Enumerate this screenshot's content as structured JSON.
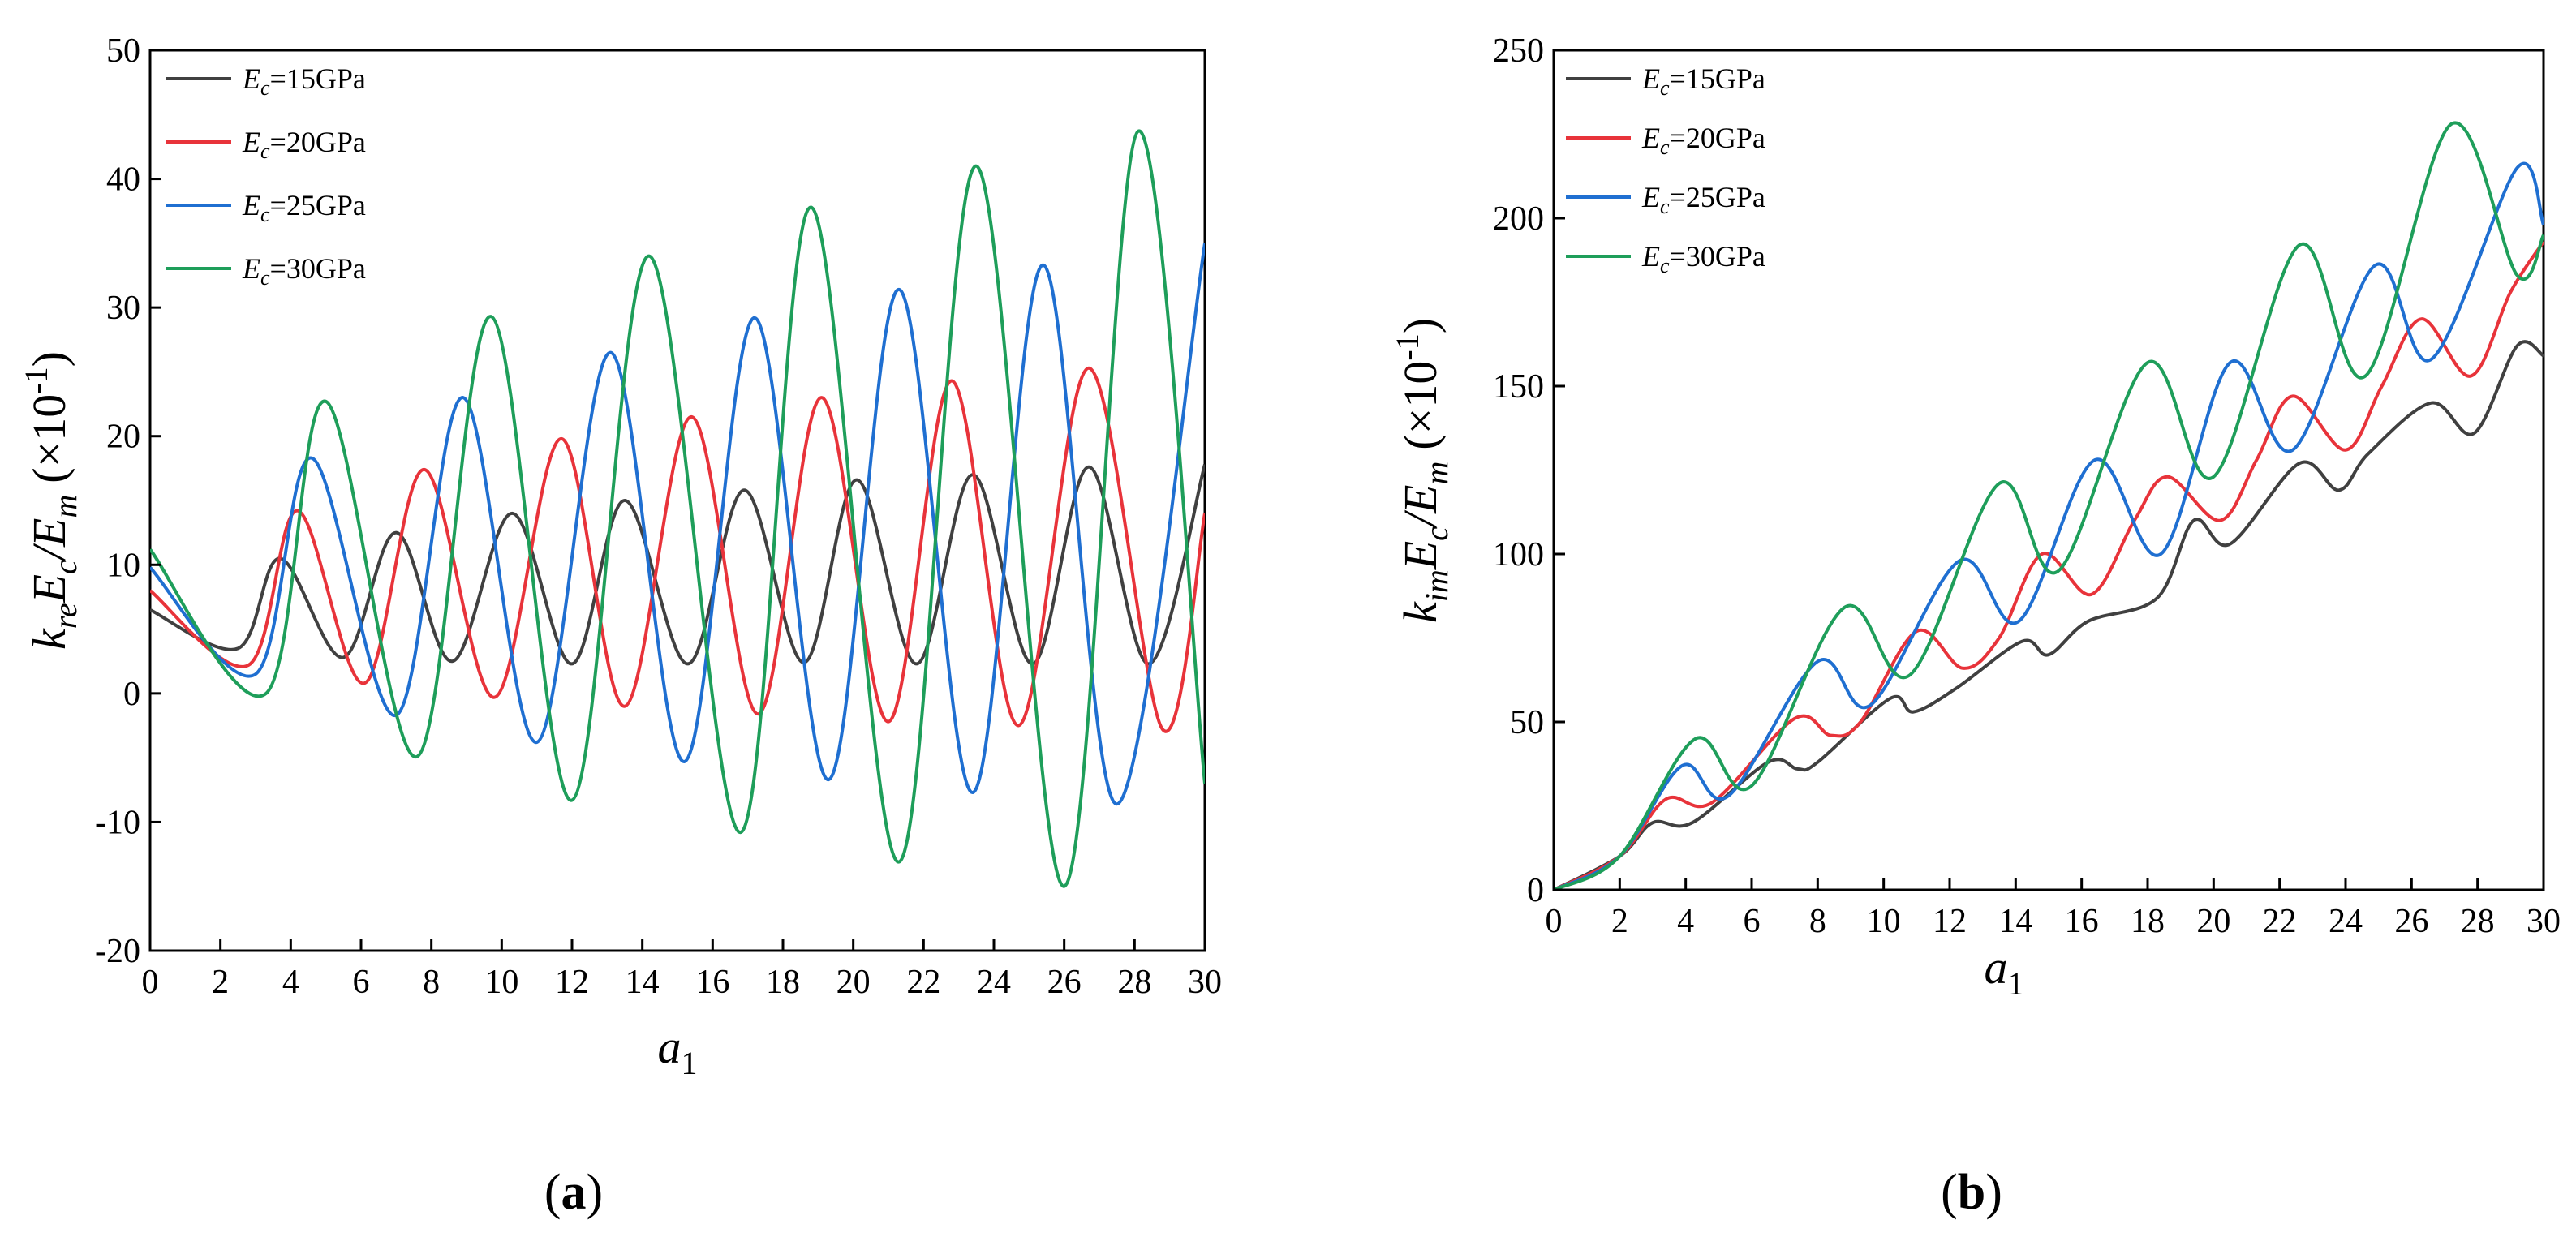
{
  "chart_data": [
    {
      "type": "line",
      "panel": "a",
      "panel_label": "a",
      "xlabel": "a",
      "xlabel_sub": "1",
      "ylabel": "k_re E_c / E_m (×10^-1)",
      "ylabel_parts": {
        "k": "k",
        "k_sub": "re",
        "Ec": "E",
        "Ec_sub": "c",
        "slash": "/",
        "Em": "E",
        "Em_sub": "m",
        "unit_pre": "(×10",
        "unit_exp": "-1",
        "unit_post": ")"
      },
      "xlim": [
        0,
        30
      ],
      "ylim": [
        -20,
        50
      ],
      "xticks": [
        0,
        2,
        4,
        6,
        8,
        10,
        12,
        14,
        16,
        18,
        20,
        22,
        24,
        26,
        28,
        30
      ],
      "yticks": [
        -20,
        -10,
        0,
        10,
        20,
        30,
        40,
        50
      ],
      "legend_position": "top-left",
      "series": [
        {
          "name": "E_c=15GPa",
          "label_prefix": "E",
          "label_sub": "c",
          "label_suffix": "=15GPa",
          "color": "#404040",
          "x": [
            0,
            2.5,
            3.7,
            5.5,
            7.0,
            8.6,
            10.3,
            12.0,
            13.5,
            15.3,
            16.9,
            18.6,
            20.1,
            21.8,
            23.4,
            25.1,
            26.7,
            28.4,
            30
          ],
          "values": [
            6.5,
            3.5,
            10.5,
            2.8,
            12.5,
            2.5,
            14.0,
            2.3,
            15.0,
            2.3,
            15.8,
            2.4,
            16.6,
            2.3,
            17.0,
            2.3,
            17.6,
            2.3,
            17.8
          ]
        },
        {
          "name": "E_c=20GPa",
          "label_prefix": "E",
          "label_sub": "c",
          "label_suffix": "=20GPa",
          "color": "#e8333a",
          "x": [
            0,
            2.8,
            4.2,
            6.1,
            7.8,
            9.8,
            11.7,
            13.5,
            15.4,
            17.3,
            19.1,
            21.0,
            22.8,
            24.7,
            26.7,
            28.8,
            30
          ],
          "values": [
            8.0,
            2.2,
            14.2,
            0.8,
            17.4,
            -0.3,
            19.8,
            -1.0,
            21.5,
            -1.6,
            23.0,
            -2.2,
            24.3,
            -2.5,
            25.3,
            -2.8,
            14.0
          ]
        },
        {
          "name": "E_c=25GPa",
          "label_prefix": "E",
          "label_sub": "c",
          "label_suffix": "=25GPa",
          "color": "#1f6fd1",
          "x": [
            0,
            3.0,
            4.6,
            7.0,
            8.9,
            11.0,
            13.1,
            15.2,
            17.2,
            19.3,
            21.3,
            23.4,
            25.4,
            27.5,
            30
          ],
          "values": [
            9.8,
            1.5,
            18.3,
            -1.7,
            23.0,
            -3.8,
            26.5,
            -5.3,
            29.2,
            -6.7,
            31.4,
            -7.7,
            33.3,
            -8.6,
            35.0
          ]
        },
        {
          "name": "E_c=30GPa",
          "label_prefix": "E",
          "label_sub": "c",
          "label_suffix": "=30GPa",
          "color": "#1e9e5a",
          "x": [
            0,
            3.3,
            5.0,
            7.6,
            9.7,
            12.0,
            14.2,
            16.8,
            18.8,
            21.3,
            23.5,
            26.0,
            28.1,
            30
          ],
          "values": [
            11.2,
            0.0,
            22.7,
            -4.9,
            29.3,
            -8.3,
            34.0,
            -10.8,
            37.8,
            -13.1,
            41.0,
            -15.0,
            43.7,
            -7.0
          ]
        }
      ]
    },
    {
      "type": "line",
      "panel": "b",
      "panel_label": "b",
      "xlabel": "a",
      "xlabel_sub": "1",
      "ylabel": "k_im E_c / E_m (×10^-1)",
      "ylabel_parts": {
        "k": "k",
        "k_sub": "im",
        "Ec": "E",
        "Ec_sub": "c",
        "slash": "/",
        "Em": "E",
        "Em_sub": "m",
        "unit_pre": "(×10",
        "unit_exp": "-1",
        "unit_post": ")"
      },
      "xlim": [
        0,
        30
      ],
      "ylim": [
        0,
        250
      ],
      "xticks": [
        0,
        2,
        4,
        6,
        8,
        10,
        12,
        14,
        16,
        18,
        20,
        22,
        24,
        26,
        28,
        30
      ],
      "yticks": [
        0,
        50,
        100,
        150,
        200,
        250
      ],
      "legend_position": "top-left",
      "series": [
        {
          "name": "E_c=15GPa",
          "label_prefix": "E",
          "label_sub": "c",
          "label_suffix": "=15GPa",
          "color": "#404040",
          "x": [
            0,
            2.0,
            3.0,
            4.2,
            6.5,
            7.4,
            8.0,
            10.2,
            10.9,
            12.2,
            14.2,
            15.0,
            16.2,
            18.3,
            19.4,
            20.5,
            22.6,
            23.8,
            24.7,
            26.6,
            27.9,
            29.2,
            30
          ],
          "values": [
            0,
            10,
            20,
            20,
            38,
            36,
            38,
            57,
            53,
            60,
            74,
            70,
            80,
            87,
            110,
            103,
            127,
            119,
            130,
            145,
            136,
            162,
            159
          ]
        },
        {
          "name": "E_c=20GPa",
          "label_prefix": "E",
          "label_sub": "c",
          "label_suffix": "=20GPa",
          "color": "#e8333a",
          "x": [
            0,
            2.0,
            3.4,
            4.8,
            7.3,
            8.4,
            9.3,
            11.0,
            12.4,
            13.5,
            14.8,
            16.3,
            17.6,
            18.6,
            20.2,
            21.3,
            22.4,
            24.0,
            25.1,
            26.3,
            27.8,
            29.0,
            30
          ],
          "values": [
            0,
            10,
            27,
            26,
            51,
            46,
            50,
            77,
            66,
            75,
            100,
            88,
            110,
            123,
            110,
            128,
            147,
            131,
            150,
            170,
            153,
            178,
            193
          ]
        },
        {
          "name": "E_c=25GPa",
          "label_prefix": "E",
          "label_sub": "c",
          "label_suffix": "=25GPa",
          "color": "#1f6fd1",
          "x": [
            0,
            2.0,
            3.9,
            5.3,
            8.0,
            9.6,
            12.3,
            14.1,
            16.4,
            18.4,
            20.5,
            22.4,
            24.9,
            26.6,
            29.2,
            30
          ],
          "values": [
            0,
            10,
            37,
            28,
            68,
            55,
            98,
            80,
            128,
            100,
            157,
            131,
            186,
            158,
            215,
            198
          ]
        },
        {
          "name": "E_c=30GPa",
          "label_prefix": "E",
          "label_sub": "c",
          "label_suffix": "=30GPa",
          "color": "#1e9e5a",
          "x": [
            0,
            2.0,
            4.3,
            6.0,
            8.8,
            10.8,
            13.5,
            15.3,
            18.0,
            20.0,
            22.6,
            24.6,
            27.2,
            29.2,
            30
          ],
          "values": [
            0,
            10,
            45,
            31,
            84,
            64,
            121,
            95,
            157,
            123,
            192,
            153,
            228,
            183,
            195
          ]
        }
      ]
    }
  ]
}
